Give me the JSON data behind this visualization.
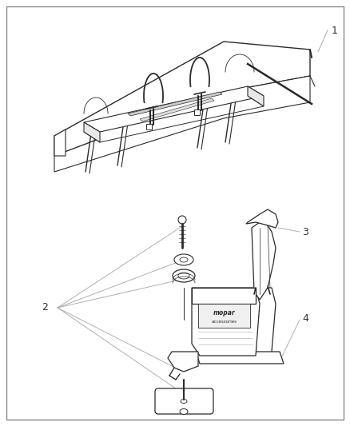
{
  "bg_color": "#ffffff",
  "border_color": "#999999",
  "line_color": "#2a2a2a",
  "label_color": "#333333",
  "leader_line_color": "#aaaaaa",
  "fill_color": "#ffffff"
}
